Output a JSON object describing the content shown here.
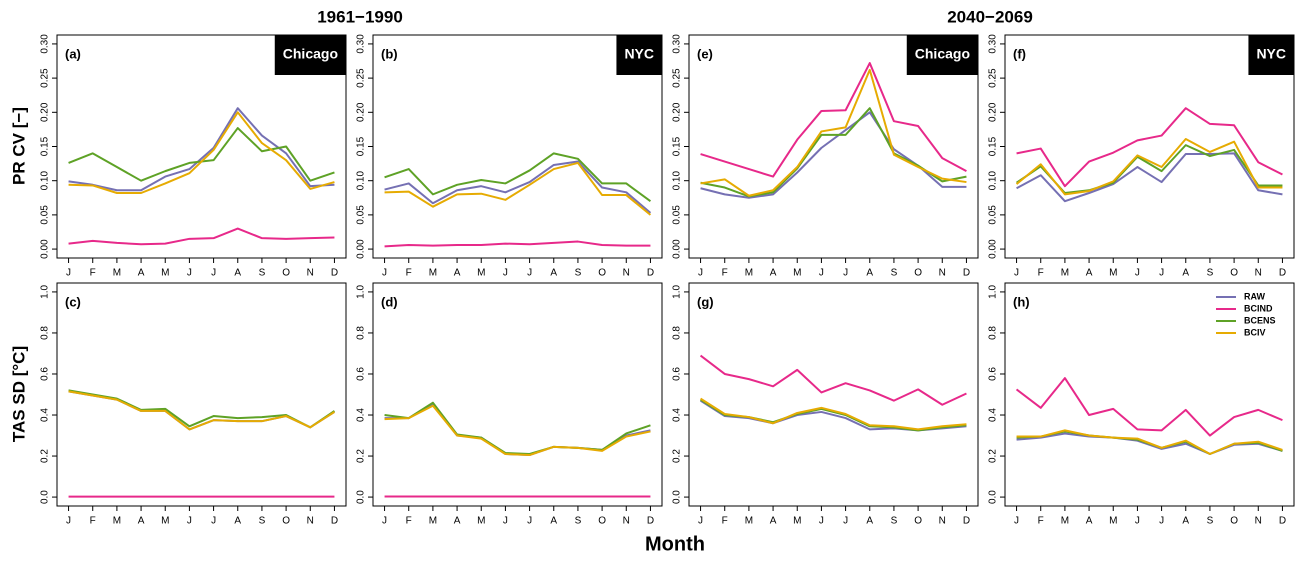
{
  "column_titles": [
    "1961−1990",
    "2040−2069"
  ],
  "y_titles": [
    "PR CV [−]",
    "TAS SD [°C]"
  ],
  "x_title": "Month",
  "chart_data": [
    {
      "type": "line",
      "panel": "(a)",
      "location": "Chicago",
      "categories": [
        "J",
        "F",
        "M",
        "A",
        "M",
        "J",
        "J",
        "A",
        "S",
        "O",
        "N",
        "D"
      ],
      "ylim": [
        0,
        0.3
      ],
      "yticks": [
        {
          "value": 0,
          "label": "0.00"
        },
        {
          "value": 0.05,
          "label": "0.05"
        },
        {
          "value": 0.1,
          "label": "0.10"
        },
        {
          "value": 0.15,
          "label": "0.15"
        },
        {
          "value": 0.2,
          "label": "0.20"
        },
        {
          "value": 0.25,
          "label": "0.25"
        },
        {
          "value": 0.3,
          "label": "0.30"
        }
      ],
      "series": [
        {
          "color": "#7570b3",
          "values": [
            0.099,
            0.094,
            0.086,
            0.086,
            0.106,
            0.117,
            0.148,
            0.206,
            0.166,
            0.14,
            0.092,
            0.094
          ]
        },
        {
          "color": "#e7298a",
          "values": [
            0.008,
            0.012,
            0.009,
            0.007,
            0.008,
            0.015,
            0.016,
            0.03,
            0.016,
            0.015,
            0.016,
            0.017
          ]
        },
        {
          "color": "#5ea226",
          "values": [
            0.126,
            0.14,
            0.12,
            0.1,
            0.114,
            0.126,
            0.13,
            0.177,
            0.143,
            0.15,
            0.1,
            0.112
          ]
        },
        {
          "color": "#e6ab02",
          "values": [
            0.094,
            0.093,
            0.082,
            0.082,
            0.096,
            0.111,
            0.145,
            0.2,
            0.155,
            0.13,
            0.088,
            0.098
          ]
        }
      ]
    },
    {
      "type": "line",
      "panel": "(b)",
      "location": "NYC",
      "categories": [
        "J",
        "F",
        "M",
        "A",
        "M",
        "J",
        "J",
        "A",
        "S",
        "O",
        "N",
        "D"
      ],
      "ylim": [
        0,
        0.3
      ],
      "yticks": [
        {
          "value": 0,
          "label": "0.00"
        },
        {
          "value": 0.05,
          "label": "0.05"
        },
        {
          "value": 0.1,
          "label": "0.10"
        },
        {
          "value": 0.15,
          "label": "0.15"
        },
        {
          "value": 0.2,
          "label": "0.20"
        },
        {
          "value": 0.25,
          "label": "0.25"
        },
        {
          "value": 0.3,
          "label": "0.30"
        }
      ],
      "series": [
        {
          "color": "#7570b3",
          "values": [
            0.087,
            0.096,
            0.067,
            0.086,
            0.092,
            0.083,
            0.098,
            0.123,
            0.128,
            0.09,
            0.083,
            0.053
          ]
        },
        {
          "color": "#e7298a",
          "values": [
            0.004,
            0.006,
            0.005,
            0.006,
            0.006,
            0.008,
            0.007,
            0.009,
            0.011,
            0.006,
            0.005,
            0.005
          ]
        },
        {
          "color": "#5ea226",
          "values": [
            0.105,
            0.117,
            0.08,
            0.094,
            0.101,
            0.096,
            0.115,
            0.14,
            0.132,
            0.096,
            0.096,
            0.07
          ]
        },
        {
          "color": "#e6ab02",
          "values": [
            0.083,
            0.084,
            0.062,
            0.08,
            0.081,
            0.072,
            0.094,
            0.117,
            0.126,
            0.079,
            0.079,
            0.05
          ]
        }
      ]
    },
    {
      "type": "line",
      "panel": "(c)",
      "categories": [
        "J",
        "F",
        "M",
        "A",
        "M",
        "J",
        "J",
        "A",
        "S",
        "O",
        "N",
        "D"
      ],
      "ylim": [
        0,
        1
      ],
      "yticks": [
        {
          "value": 0,
          "label": "0.0"
        },
        {
          "value": 0.2,
          "label": "0.2"
        },
        {
          "value": 0.4,
          "label": "0.4"
        },
        {
          "value": 0.6,
          "label": "0.6"
        },
        {
          "value": 0.8,
          "label": "0.8"
        },
        {
          "value": 1,
          "label": "1.0"
        }
      ],
      "series": [
        {
          "color": "#7570b3",
          "values": [
            0.515,
            0.495,
            0.475,
            0.42,
            0.42,
            0.33,
            0.375,
            0.37,
            0.37,
            0.395,
            0.34,
            0.415
          ]
        },
        {
          "color": "#e7298a",
          "values": [
            0.002,
            0.002,
            0.002,
            0.002,
            0.002,
            0.002,
            0.002,
            0.002,
            0.002,
            0.002,
            0.002,
            0.002
          ]
        },
        {
          "color": "#5ea226",
          "values": [
            0.52,
            0.5,
            0.48,
            0.425,
            0.43,
            0.345,
            0.395,
            0.385,
            0.39,
            0.4,
            0.34,
            0.42
          ]
        },
        {
          "color": "#e6ab02",
          "values": [
            0.515,
            0.495,
            0.475,
            0.42,
            0.42,
            0.33,
            0.375,
            0.37,
            0.37,
            0.395,
            0.34,
            0.415
          ]
        }
      ]
    },
    {
      "type": "line",
      "panel": "(d)",
      "categories": [
        "J",
        "F",
        "M",
        "A",
        "M",
        "J",
        "J",
        "A",
        "S",
        "O",
        "N",
        "D"
      ],
      "ylim": [
        0,
        1
      ],
      "yticks": [
        {
          "value": 0,
          "label": "0.0"
        },
        {
          "value": 0.2,
          "label": "0.2"
        },
        {
          "value": 0.4,
          "label": "0.4"
        },
        {
          "value": 0.6,
          "label": "0.6"
        },
        {
          "value": 0.8,
          "label": "0.8"
        },
        {
          "value": 1,
          "label": "1.0"
        }
      ],
      "series": [
        {
          "color": "#7570b3",
          "values": [
            0.385,
            0.385,
            0.45,
            0.3,
            0.29,
            0.21,
            0.205,
            0.245,
            0.24,
            0.23,
            0.3,
            0.325
          ]
        },
        {
          "color": "#e7298a",
          "values": [
            0.003,
            0.003,
            0.003,
            0.003,
            0.003,
            0.003,
            0.003,
            0.003,
            0.003,
            0.003,
            0.003,
            0.003
          ]
        },
        {
          "color": "#5ea226",
          "values": [
            0.4,
            0.385,
            0.46,
            0.305,
            0.29,
            0.215,
            0.21,
            0.245,
            0.24,
            0.23,
            0.31,
            0.35
          ]
        },
        {
          "color": "#e6ab02",
          "values": [
            0.38,
            0.385,
            0.445,
            0.3,
            0.285,
            0.21,
            0.205,
            0.245,
            0.24,
            0.225,
            0.295,
            0.32
          ]
        }
      ]
    },
    {
      "type": "line",
      "panel": "(e)",
      "location": "Chicago",
      "categories": [
        "J",
        "F",
        "M",
        "A",
        "M",
        "J",
        "J",
        "A",
        "S",
        "O",
        "N",
        "D"
      ],
      "ylim": [
        0,
        0.3
      ],
      "yticks": [
        {
          "value": 0,
          "label": "0.00"
        },
        {
          "value": 0.05,
          "label": "0.05"
        },
        {
          "value": 0.1,
          "label": "0.10"
        },
        {
          "value": 0.15,
          "label": "0.15"
        },
        {
          "value": 0.2,
          "label": "0.20"
        },
        {
          "value": 0.25,
          "label": "0.25"
        },
        {
          "value": 0.3,
          "label": "0.30"
        }
      ],
      "series": [
        {
          "color": "#7570b3",
          "values": [
            0.089,
            0.08,
            0.075,
            0.08,
            0.112,
            0.148,
            0.174,
            0.2,
            0.146,
            0.122,
            0.091,
            0.091
          ]
        },
        {
          "color": "#e7298a",
          "values": [
            0.139,
            0.128,
            0.117,
            0.106,
            0.16,
            0.202,
            0.203,
            0.272,
            0.187,
            0.18,
            0.133,
            0.114
          ]
        },
        {
          "color": "#5ea226",
          "values": [
            0.097,
            0.09,
            0.077,
            0.083,
            0.118,
            0.167,
            0.167,
            0.206,
            0.14,
            0.122,
            0.099,
            0.106
          ]
        },
        {
          "color": "#e6ab02",
          "values": [
            0.096,
            0.102,
            0.078,
            0.086,
            0.12,
            0.172,
            0.178,
            0.262,
            0.138,
            0.12,
            0.103,
            0.098
          ]
        }
      ]
    },
    {
      "type": "line",
      "panel": "(f)",
      "location": "NYC",
      "categories": [
        "J",
        "F",
        "M",
        "A",
        "M",
        "J",
        "J",
        "A",
        "S",
        "O",
        "N",
        "D"
      ],
      "ylim": [
        0,
        0.3
      ],
      "yticks": [
        {
          "value": 0,
          "label": "0.00"
        },
        {
          "value": 0.05,
          "label": "0.05"
        },
        {
          "value": 0.1,
          "label": "0.10"
        },
        {
          "value": 0.15,
          "label": "0.15"
        },
        {
          "value": 0.2,
          "label": "0.20"
        },
        {
          "value": 0.25,
          "label": "0.25"
        },
        {
          "value": 0.3,
          "label": "0.30"
        }
      ],
      "series": [
        {
          "color": "#7570b3",
          "values": [
            0.089,
            0.108,
            0.07,
            0.082,
            0.095,
            0.12,
            0.098,
            0.139,
            0.139,
            0.14,
            0.086,
            0.08
          ]
        },
        {
          "color": "#e7298a",
          "values": [
            0.14,
            0.147,
            0.092,
            0.128,
            0.141,
            0.159,
            0.166,
            0.206,
            0.183,
            0.181,
            0.127,
            0.109
          ]
        },
        {
          "color": "#5ea226",
          "values": [
            0.097,
            0.121,
            0.082,
            0.086,
            0.097,
            0.135,
            0.114,
            0.152,
            0.136,
            0.145,
            0.093,
            0.093
          ]
        },
        {
          "color": "#e6ab02",
          "values": [
            0.095,
            0.124,
            0.08,
            0.085,
            0.099,
            0.137,
            0.12,
            0.161,
            0.142,
            0.157,
            0.09,
            0.09
          ]
        }
      ]
    },
    {
      "type": "line",
      "panel": "(g)",
      "categories": [
        "J",
        "F",
        "M",
        "A",
        "M",
        "J",
        "J",
        "A",
        "S",
        "O",
        "N",
        "D"
      ],
      "ylim": [
        0,
        1
      ],
      "yticks": [
        {
          "value": 0,
          "label": "0.0"
        },
        {
          "value": 0.2,
          "label": "0.2"
        },
        {
          "value": 0.4,
          "label": "0.4"
        },
        {
          "value": 0.6,
          "label": "0.6"
        },
        {
          "value": 0.8,
          "label": "0.8"
        },
        {
          "value": 1,
          "label": "1.0"
        }
      ],
      "series": [
        {
          "color": "#7570b3",
          "values": [
            0.47,
            0.395,
            0.385,
            0.36,
            0.4,
            0.415,
            0.385,
            0.33,
            0.335,
            0.325,
            0.335,
            0.345
          ]
        },
        {
          "color": "#e7298a",
          "values": [
            0.69,
            0.6,
            0.575,
            0.54,
            0.62,
            0.51,
            0.555,
            0.52,
            0.47,
            0.525,
            0.45,
            0.505
          ]
        },
        {
          "color": "#5ea226",
          "values": [
            0.475,
            0.4,
            0.39,
            0.365,
            0.405,
            0.43,
            0.4,
            0.345,
            0.34,
            0.325,
            0.34,
            0.35
          ]
        },
        {
          "color": "#e6ab02",
          "values": [
            0.48,
            0.405,
            0.39,
            0.36,
            0.41,
            0.435,
            0.405,
            0.35,
            0.345,
            0.33,
            0.345,
            0.355
          ]
        }
      ]
    },
    {
      "type": "line",
      "panel": "(h)",
      "legend": "upper right",
      "categories": [
        "J",
        "F",
        "M",
        "A",
        "M",
        "J",
        "J",
        "A",
        "S",
        "O",
        "N",
        "D"
      ],
      "ylim": [
        0,
        1
      ],
      "yticks": [
        {
          "value": 0,
          "label": "0.0"
        },
        {
          "value": 0.2,
          "label": "0.2"
        },
        {
          "value": 0.4,
          "label": "0.4"
        },
        {
          "value": 0.6,
          "label": "0.6"
        },
        {
          "value": 0.8,
          "label": "0.8"
        },
        {
          "value": 1,
          "label": "1.0"
        }
      ],
      "series": [
        {
          "name": "RAW",
          "color": "#7570b3",
          "values": [
            0.28,
            0.29,
            0.31,
            0.295,
            0.29,
            0.275,
            0.235,
            0.26,
            0.21,
            0.255,
            0.26,
            0.225
          ]
        },
        {
          "name": "BCIND",
          "color": "#e7298a",
          "values": [
            0.525,
            0.435,
            0.58,
            0.4,
            0.43,
            0.33,
            0.325,
            0.425,
            0.3,
            0.39,
            0.425,
            0.375
          ]
        },
        {
          "name": "BCENS",
          "color": "#5ea226",
          "values": [
            0.29,
            0.295,
            0.32,
            0.3,
            0.29,
            0.28,
            0.24,
            0.27,
            0.21,
            0.26,
            0.265,
            0.225
          ]
        },
        {
          "name": "BCIV",
          "color": "#e6ab02",
          "values": [
            0.295,
            0.295,
            0.325,
            0.3,
            0.29,
            0.285,
            0.24,
            0.275,
            0.21,
            0.26,
            0.27,
            0.23
          ]
        }
      ]
    }
  ]
}
